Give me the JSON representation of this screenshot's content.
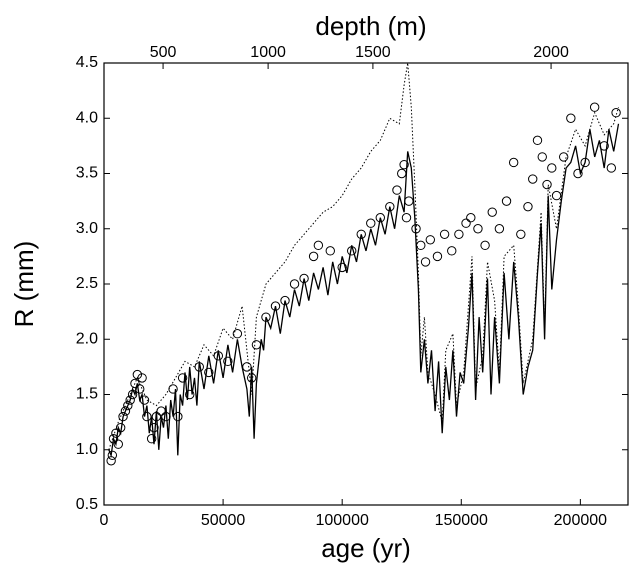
{
  "chart_data": {
    "type": "line",
    "xlabel": "age (yr)",
    "ylabel": "R (mm)",
    "x2label": "depth (m)",
    "xlim": [
      0,
      220000
    ],
    "xticks": [
      0,
      50000,
      100000,
      150000,
      200000
    ],
    "ylim": [
      0.5,
      4.5
    ],
    "yticks": [
      0.5,
      {
        "value": 1.0,
        "label": "1.0"
      },
      1.5,
      {
        "value": 2.0,
        "label": "2.0"
      },
      2.5,
      {
        "value": 3.0,
        "label": "3.0"
      },
      3.5,
      {
        "value": 4.0,
        "label": "4.0"
      },
      4.5
    ],
    "x2ticks": [
      {
        "value": 500,
        "age": 24800
      },
      {
        "value": 1000,
        "age": 68900
      },
      {
        "value": 1500,
        "age": 112900
      },
      {
        "value": 2000,
        "age": 187700
      }
    ],
    "color": "#000000",
    "series": [
      {
        "style": "solid",
        "x": [
          2000,
          3000,
          4000,
          5000,
          6000,
          7000,
          8000,
          9000,
          10000,
          11000,
          12000,
          13000,
          14000,
          15000,
          16000,
          17000,
          18000,
          19000,
          20000,
          21000,
          22000,
          23000,
          24000,
          25000,
          26000,
          27000,
          28000,
          29000,
          30000,
          31000,
          32000,
          33000,
          34000,
          35000,
          36000,
          37000,
          38000,
          39000,
          40000,
          42000,
          44000,
          46000,
          48000,
          50000,
          52000,
          54000,
          56000,
          58000,
          60000,
          61000,
          62000,
          63000,
          64000,
          66000,
          67000,
          68000,
          70000,
          72000,
          74000,
          76000,
          78000,
          80000,
          82000,
          84000,
          86000,
          88000,
          90000,
          92000,
          94000,
          96000,
          98000,
          100000,
          102000,
          104000,
          106000,
          108000,
          110000,
          112000,
          114000,
          116000,
          118000,
          120000,
          122000,
          124000,
          126000,
          127500,
          129000,
          130500,
          132000,
          133000,
          134500,
          136000,
          137500,
          139000,
          140500,
          142000,
          143500,
          145000,
          146500,
          148000,
          149500,
          151000,
          153000,
          154500,
          156000,
          157500,
          159000,
          161000,
          162500,
          164000,
          166000,
          168000,
          170000,
          172000,
          174000,
          176000,
          178000,
          180000,
          182000,
          183500,
          185000,
          186500,
          188000,
          190000,
          192000,
          194000,
          196000,
          198000,
          200000,
          202000,
          204000,
          206000,
          208000,
          210000,
          212000,
          214000,
          216000
        ],
        "values": [
          1.0,
          0.95,
          1.1,
          1.05,
          1.2,
          1.15,
          1.3,
          1.35,
          1.4,
          1.45,
          1.55,
          1.5,
          1.6,
          1.45,
          1.5,
          1.3,
          1.4,
          1.15,
          1.3,
          1.05,
          1.35,
          1.0,
          1.3,
          1.2,
          1.4,
          1.1,
          1.45,
          1.3,
          1.55,
          0.95,
          1.5,
          1.4,
          1.7,
          1.45,
          1.75,
          1.5,
          1.65,
          1.4,
          1.8,
          1.55,
          1.85,
          1.6,
          1.9,
          1.65,
          1.95,
          1.7,
          2.0,
          1.75,
          1.55,
          1.3,
          1.75,
          1.1,
          1.6,
          2.0,
          1.9,
          2.2,
          2.1,
          2.3,
          2.05,
          2.35,
          2.2,
          2.45,
          2.3,
          2.55,
          2.35,
          2.6,
          2.45,
          2.65,
          2.4,
          2.7,
          2.5,
          2.75,
          2.6,
          2.85,
          2.7,
          2.95,
          2.8,
          3.0,
          2.85,
          3.1,
          2.95,
          3.2,
          3.0,
          3.3,
          3.15,
          3.7,
          3.55,
          3.1,
          2.45,
          1.7,
          2.0,
          1.6,
          1.9,
          1.35,
          1.8,
          1.15,
          1.75,
          1.45,
          1.9,
          1.3,
          1.7,
          1.6,
          2.1,
          2.6,
          1.45,
          2.2,
          1.7,
          2.55,
          1.5,
          2.2,
          1.6,
          2.6,
          2.0,
          2.7,
          2.2,
          1.5,
          1.75,
          1.9,
          2.6,
          3.05,
          2.0,
          3.3,
          2.45,
          2.9,
          3.25,
          3.55,
          3.6,
          3.75,
          3.5,
          3.6,
          3.9,
          3.65,
          3.8,
          3.55,
          3.9,
          3.7,
          3.95
        ]
      },
      {
        "style": "dotted",
        "x": [
          2000,
          6000,
          10000,
          14000,
          18000,
          22000,
          26000,
          30000,
          34000,
          38000,
          42000,
          46000,
          50000,
          54000,
          58000,
          62000,
          64000,
          68000,
          72000,
          76000,
          80000,
          84000,
          88000,
          92000,
          96000,
          100000,
          104000,
          108000,
          112000,
          116000,
          120000,
          124000,
          126000,
          127500,
          129000,
          130500,
          132000,
          133000,
          134500,
          136000,
          139000,
          142000,
          143500,
          146500,
          148000,
          151000,
          154500,
          156000,
          159000,
          161000,
          164000,
          166000,
          168000,
          172000,
          174000,
          176000,
          180000,
          183500,
          185000,
          186500,
          190000,
          194000,
          198000,
          202000,
          206000,
          210000,
          214000,
          216000
        ],
        "values": [
          1.0,
          1.25,
          1.45,
          1.65,
          1.45,
          1.4,
          1.5,
          1.65,
          1.8,
          1.75,
          1.95,
          1.85,
          2.1,
          2.0,
          2.3,
          1.5,
          2.2,
          2.5,
          2.6,
          2.7,
          2.85,
          2.95,
          3.05,
          3.15,
          3.2,
          3.3,
          3.45,
          3.55,
          3.7,
          3.8,
          4.0,
          3.95,
          4.3,
          4.5,
          4.1,
          3.4,
          2.6,
          1.85,
          2.2,
          1.7,
          1.5,
          1.25,
          1.9,
          2.05,
          1.4,
          1.7,
          2.75,
          1.55,
          1.85,
          2.7,
          2.35,
          1.7,
          2.75,
          2.85,
          2.3,
          1.6,
          2.0,
          3.15,
          2.1,
          3.4,
          3.0,
          3.65,
          3.9,
          3.75,
          4.05,
          3.85,
          3.95,
          4.1
        ]
      },
      {
        "style": "markers",
        "x": [
          3000,
          3500,
          4000,
          5000,
          6000,
          7000,
          8000,
          9000,
          10000,
          11000,
          12000,
          13000,
          14000,
          15000,
          16000,
          17000,
          18000,
          20000,
          21000,
          22000,
          24000,
          26000,
          29000,
          31000,
          33000,
          36000,
          40000,
          44000,
          48000,
          52000,
          56000,
          60000,
          62000,
          64000,
          68000,
          72000,
          76000,
          80000,
          84000,
          88000,
          90000,
          95000,
          100000,
          104000,
          108000,
          112000,
          116000,
          120000,
          123000,
          125000,
          126000,
          127000,
          128000,
          131000,
          133000,
          135000,
          137000,
          140000,
          143000,
          146000,
          149000,
          152000,
          154000,
          157000,
          160000,
          163000,
          166000,
          169000,
          172000,
          175000,
          178000,
          180000,
          182000,
          184000,
          186000,
          188000,
          190000,
          193000,
          196000,
          199000,
          202000,
          206000,
          210000,
          213000,
          215000
        ],
        "values": [
          0.9,
          0.95,
          1.1,
          1.15,
          1.05,
          1.2,
          1.3,
          1.35,
          1.4,
          1.45,
          1.5,
          1.6,
          1.68,
          1.55,
          1.65,
          1.45,
          1.3,
          1.1,
          1.2,
          1.3,
          1.35,
          1.3,
          1.55,
          1.3,
          1.65,
          1.5,
          1.75,
          1.7,
          1.85,
          1.8,
          2.05,
          1.75,
          1.65,
          1.95,
          2.2,
          2.3,
          2.35,
          2.5,
          2.55,
          2.75,
          2.85,
          2.8,
          2.65,
          2.8,
          2.95,
          3.05,
          3.1,
          3.2,
          3.35,
          3.5,
          3.58,
          3.1,
          3.25,
          3.0,
          2.85,
          2.7,
          2.9,
          2.75,
          2.95,
          2.8,
          2.95,
          3.05,
          3.1,
          3.0,
          2.85,
          3.15,
          3.0,
          3.25,
          3.6,
          2.95,
          3.2,
          3.45,
          3.8,
          3.65,
          3.4,
          3.55,
          3.3,
          3.65,
          4.0,
          3.5,
          3.6,
          4.1,
          3.75,
          3.55,
          4.05
        ]
      }
    ]
  }
}
